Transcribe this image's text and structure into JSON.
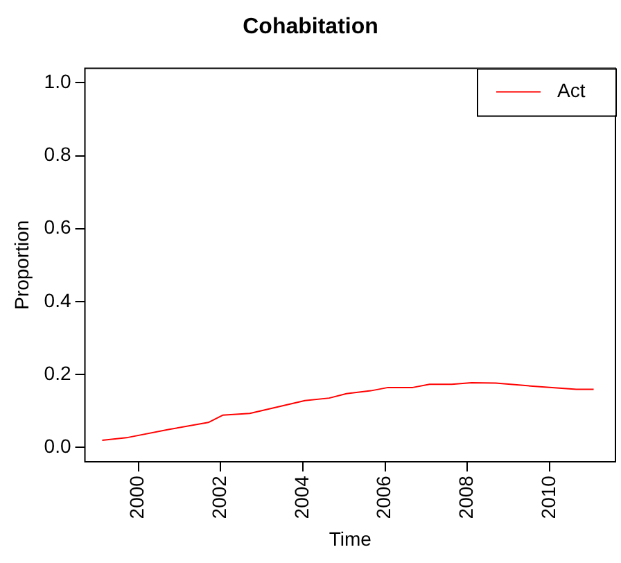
{
  "chart_data": {
    "type": "line",
    "title": "Cohabitation",
    "xlabel": "Time",
    "ylabel": "Proportion",
    "series": [
      {
        "name": "Act",
        "color": "#ff0000",
        "x": [
          1999.12,
          1999.75,
          2000.75,
          2001.7,
          2002.05,
          2002.71,
          2004.05,
          2004.64,
          2005.06,
          2005.65,
          2006.07,
          2006.67,
          2007.08,
          2007.62,
          2008.1,
          2008.69,
          2009.88,
          2010.65,
          2011.07
        ],
        "values": [
          0.019,
          0.027,
          0.049,
          0.068,
          0.088,
          0.093,
          0.128,
          0.135,
          0.147,
          0.155,
          0.164,
          0.164,
          0.173,
          0.173,
          0.177,
          0.176,
          0.165,
          0.159,
          0.159
        ]
      }
    ],
    "xlim": [
      1998.7,
      2011.6
    ],
    "xticks": [
      2000,
      2002,
      2004,
      2006,
      2008,
      2010
    ],
    "ylim": [
      -0.04,
      1.04
    ],
    "yticks": [
      {
        "value": 0,
        "label": "0.0"
      },
      {
        "value": 0.2,
        "label": "0.2"
      },
      {
        "value": 0.4,
        "label": "0.4"
      },
      {
        "value": 0.6,
        "label": "0.6"
      },
      {
        "value": 0.8,
        "label": "0.8"
      },
      {
        "value": 1,
        "label": "1.0"
      }
    ],
    "legend": "top right",
    "grid": false,
    "marker": "none",
    "line_style": "solid"
  }
}
